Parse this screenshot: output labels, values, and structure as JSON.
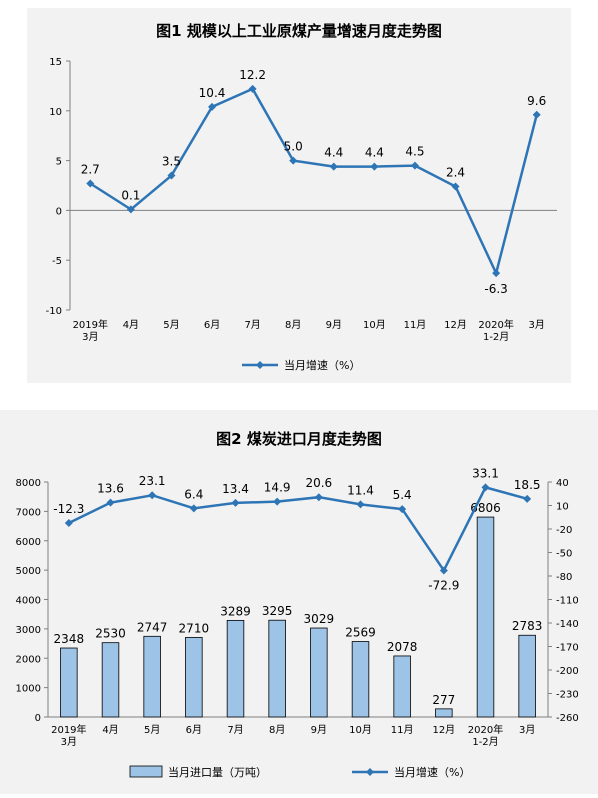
{
  "chart_data": [
    {
      "type": "line",
      "title": "图1  规模以上工业原煤产量增速月度走势图",
      "categories": [
        "2019年\n3月",
        "4月",
        "5月",
        "6月",
        "7月",
        "8月",
        "9月",
        "10月",
        "11月",
        "12月",
        "2020年\n1-2月",
        "3月"
      ],
      "series": [
        {
          "name": "当月增速（%）",
          "values": [
            2.7,
            0.1,
            3.5,
            10.4,
            12.2,
            5.0,
            4.4,
            4.4,
            4.5,
            2.4,
            -6.3,
            9.6
          ]
        }
      ],
      "value_labels": [
        "2.7",
        "0.1",
        "3.5",
        "10.4",
        "12.2",
        "5.0",
        "4.4",
        "4.4",
        "4.5",
        "2.4",
        "-6.3",
        "9.6"
      ],
      "ylim": [
        -10,
        15
      ],
      "yticks": [
        -10,
        -5,
        0,
        5,
        10,
        15
      ],
      "grid": false,
      "legend": "bottom",
      "colors": {
        "line": "#2e75b6"
      }
    },
    {
      "type": "bar",
      "title": "图2  煤炭进口月度走势图",
      "categories": [
        "2019年\n3月",
        "4月",
        "5月",
        "6月",
        "7月",
        "8月",
        "9月",
        "10月",
        "11月",
        "12月",
        "2020年\n1-2月",
        "3月"
      ],
      "series": [
        {
          "name": "当月进口量（万吨）",
          "type": "bar",
          "axis": "left",
          "values": [
            2348,
            2530,
            2747,
            2710,
            3289,
            3295,
            3029,
            2569,
            2078,
            277,
            6806,
            2783
          ]
        },
        {
          "name": "当月增速（%）",
          "type": "line",
          "axis": "right",
          "values": [
            -12.3,
            13.6,
            23.1,
            6.4,
            13.4,
            14.9,
            20.6,
            11.4,
            5.4,
            -72.9,
            33.1,
            18.5
          ]
        }
      ],
      "bar_labels": [
        "2348",
        "2530",
        "2747",
        "2710",
        "3289",
        "3295",
        "3029",
        "2569",
        "2078",
        "277",
        "6806",
        "2783"
      ],
      "line_labels": [
        "-12.3",
        "13.6",
        "23.1",
        "6.4",
        "13.4",
        "14.9",
        "20.6",
        "11.4",
        "5.4",
        "-72.9",
        "33.1",
        "18.5"
      ],
      "ylim_left": [
        0,
        8000
      ],
      "yticks_left": [
        0,
        1000,
        2000,
        3000,
        4000,
        5000,
        6000,
        7000,
        8000
      ],
      "ylim_right": [
        -260,
        40
      ],
      "yticks_right": [
        -260,
        -230,
        -200,
        -170,
        -140,
        -110,
        -80,
        -50,
        -20,
        10,
        40
      ],
      "grid": false,
      "legend": "bottom",
      "colors": {
        "bar_fill": "#9dc3e6",
        "bar_stroke": "#000000",
        "line": "#2e75b6"
      }
    }
  ]
}
